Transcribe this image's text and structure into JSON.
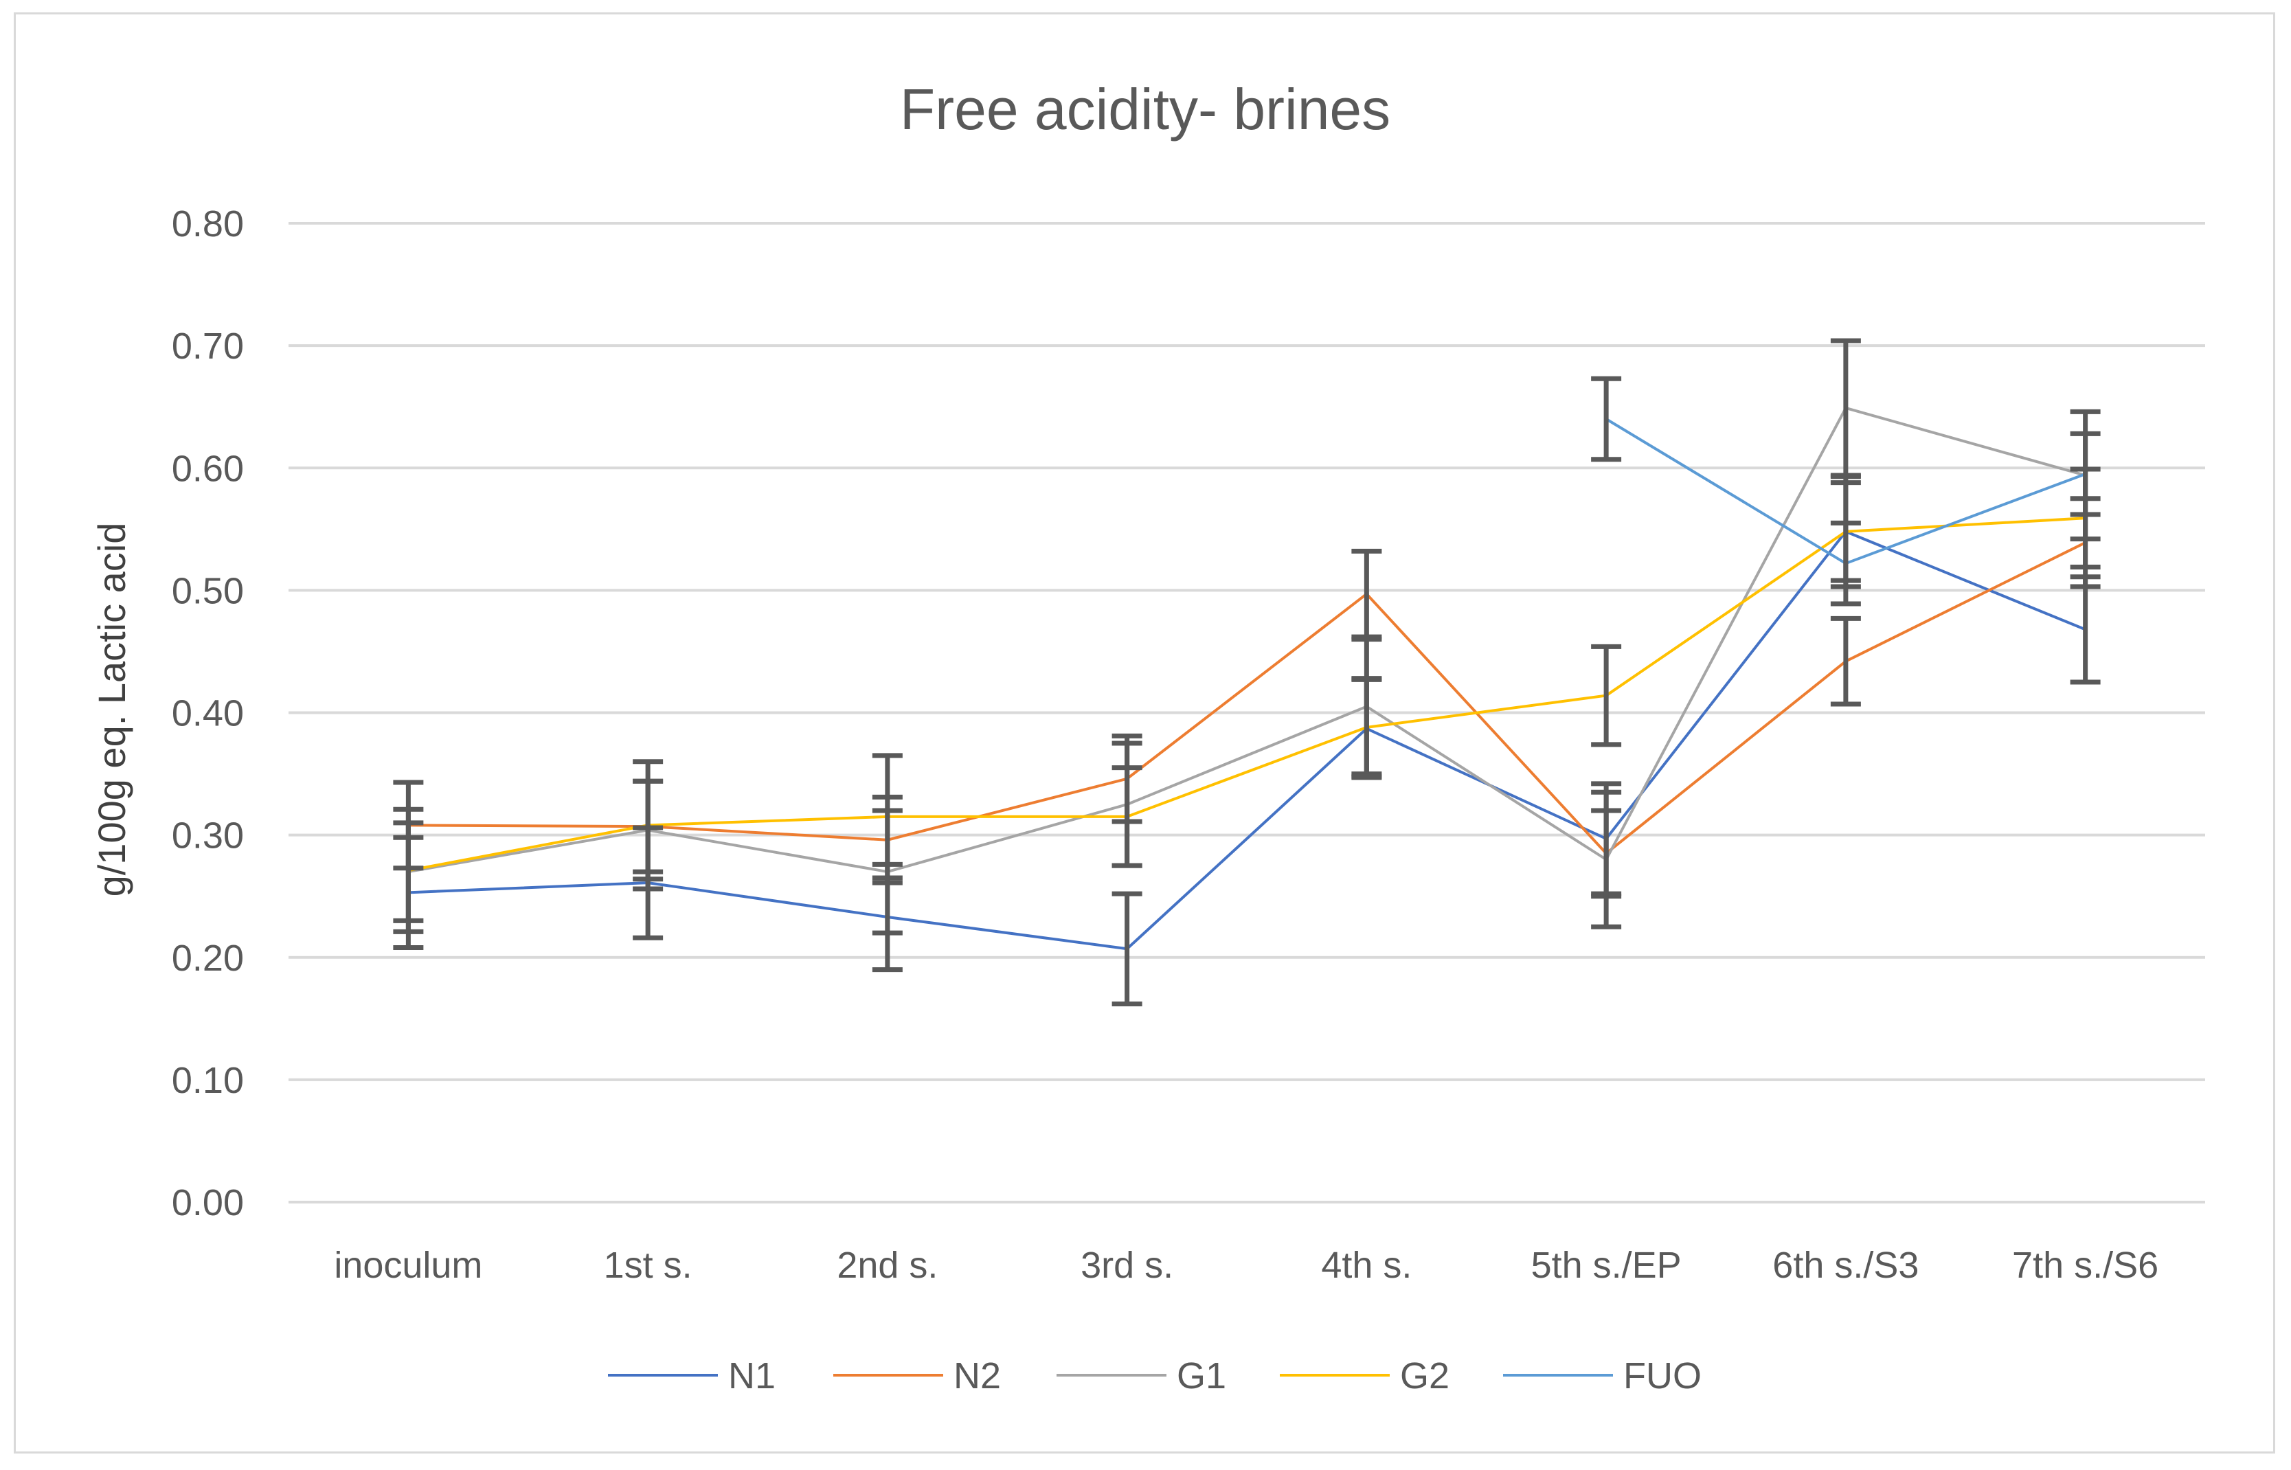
{
  "chart_data": {
    "type": "line",
    "title": "Free acidity- brines",
    "xlabel": "",
    "ylabel": "g/100g eq. Lactic acid",
    "ylim": [
      0,
      0.8
    ],
    "yticks": [
      "0.00",
      "0.10",
      "0.20",
      "0.30",
      "0.40",
      "0.50",
      "0.60",
      "0.70",
      "0.80"
    ],
    "categories": [
      "inoculum",
      "1st s.",
      "2nd s.",
      "3rd s.",
      "4th s.",
      "5th s./EP",
      "6th s./S3",
      "7th s./S6"
    ],
    "grid": true,
    "legend_position": "bottom",
    "series": [
      {
        "name": "N1",
        "color": "#4472c4",
        "values": [
          0.253,
          0.261,
          0.233,
          0.207,
          0.387,
          0.297,
          0.548,
          0.468
        ],
        "errors": [
          0.045,
          0.045,
          0.043,
          0.045,
          0.04,
          0.045,
          0.045,
          0.043
        ]
      },
      {
        "name": "N2",
        "color": "#ed7d31",
        "values": [
          0.308,
          0.307,
          0.296,
          0.346,
          0.497,
          0.285,
          0.442,
          0.539
        ],
        "errors": [
          0.035,
          0.037,
          0.035,
          0.035,
          0.035,
          0.035,
          0.035,
          0.036
        ]
      },
      {
        "name": "G1",
        "color": "#a5a5a5",
        "values": [
          0.27,
          0.304,
          0.27,
          0.325,
          0.405,
          0.28,
          0.649,
          0.594
        ],
        "errors": [
          0.04,
          0.04,
          0.05,
          0.05,
          0.055,
          0.055,
          0.055,
          0.052
        ]
      },
      {
        "name": "G2",
        "color": "#ffc000",
        "values": [
          0.271,
          0.308,
          0.315,
          0.315,
          0.388,
          0.414,
          0.548,
          0.559
        ],
        "errors": [
          0.05,
          0.052,
          0.05,
          0.04,
          0.04,
          0.04,
          0.04,
          0.04
        ]
      },
      {
        "name": "FUO",
        "color": "#5b9bd5",
        "values": [
          null,
          null,
          null,
          null,
          null,
          0.64,
          0.522,
          0.595
        ],
        "errors": [
          null,
          null,
          null,
          null,
          null,
          0.033,
          0.033,
          0.033
        ]
      }
    ]
  }
}
